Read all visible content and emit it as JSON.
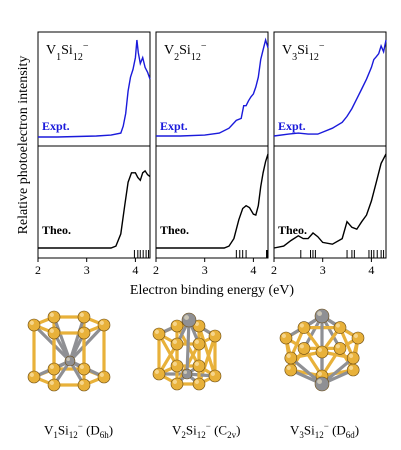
{
  "figure": {
    "ylabel": "Relative photoelectron intensity",
    "xlabel": "Electron binding energy (eV)",
    "expt_label": "Expt.",
    "theo_label": "Theo.",
    "xlim": [
      2,
      4.3
    ],
    "xticks": [
      "2",
      "3",
      "4"
    ],
    "expt_color": "#1a1adb",
    "theo_color": "#000000",
    "cluster_color": "#e8b13a",
    "dopant_color": "#8f9094"
  },
  "chart_data": [
    {
      "type": "line",
      "panel": "V1Si12-",
      "title_parts": [
        "V",
        "1",
        "Si",
        "12",
        "−"
      ],
      "xlim": [
        2,
        4.3
      ],
      "series": [
        {
          "role": "expt",
          "x": [
            2.0,
            2.4,
            2.8,
            3.2,
            3.5,
            3.7,
            3.75,
            3.8,
            3.85,
            3.9,
            3.95,
            4.0,
            4.03,
            4.06,
            4.1,
            4.15,
            4.2,
            4.25,
            4.3
          ],
          "y": [
            0.01,
            0.01,
            0.015,
            0.02,
            0.03,
            0.05,
            0.12,
            0.25,
            0.48,
            0.62,
            0.7,
            0.82,
            1.0,
            0.87,
            0.76,
            0.82,
            0.72,
            0.67,
            0.6
          ]
        },
        {
          "role": "theo",
          "x": [
            2.0,
            3.5,
            3.6,
            3.7,
            3.78,
            3.85,
            3.92,
            4.0,
            4.05,
            4.1,
            4.15,
            4.2,
            4.25,
            4.3
          ],
          "y": [
            0.0,
            0.0,
            0.02,
            0.15,
            0.45,
            0.7,
            0.8,
            0.8,
            0.75,
            0.72,
            0.8,
            0.82,
            0.78,
            0.76
          ]
        }
      ],
      "sticks": [
        3.98,
        4.05,
        4.1,
        4.16,
        4.22,
        4.27
      ]
    },
    {
      "type": "line",
      "panel": "V2Si12-",
      "title_parts": [
        "V",
        "2",
        "Si",
        "12",
        "−"
      ],
      "xlim": [
        2,
        4.3
      ],
      "series": [
        {
          "role": "expt",
          "x": [
            2.0,
            2.5,
            3.0,
            3.3,
            3.5,
            3.65,
            3.75,
            3.8,
            3.85,
            3.9,
            3.95,
            4.0,
            4.05,
            4.1,
            4.15,
            4.2,
            4.25,
            4.3
          ],
          "y": [
            0.02,
            0.02,
            0.03,
            0.05,
            0.1,
            0.18,
            0.2,
            0.33,
            0.33,
            0.38,
            0.42,
            0.45,
            0.52,
            0.62,
            0.8,
            0.9,
            1.0,
            0.92
          ]
        },
        {
          "role": "theo",
          "x": [
            2.0,
            3.4,
            3.5,
            3.6,
            3.7,
            3.78,
            3.85,
            3.92,
            4.0,
            4.05,
            4.1,
            4.15,
            4.2,
            4.25,
            4.3
          ],
          "y": [
            0.0,
            0.0,
            0.02,
            0.1,
            0.3,
            0.42,
            0.45,
            0.43,
            0.36,
            0.35,
            0.45,
            0.65,
            0.8,
            0.92,
            1.0
          ]
        }
      ],
      "sticks": [
        3.65,
        3.72,
        3.78,
        3.85,
        4.27,
        4.28,
        4.29
      ]
    },
    {
      "type": "line",
      "panel": "V3Si12-",
      "title_parts": [
        "V",
        "3",
        "Si",
        "12",
        "−"
      ],
      "xlim": [
        2,
        4.3
      ],
      "series": [
        {
          "role": "expt",
          "x": [
            2.0,
            2.3,
            2.5,
            2.7,
            2.9,
            3.0,
            3.2,
            3.4,
            3.5,
            3.6,
            3.7,
            3.8,
            3.9,
            4.0,
            4.05,
            4.1,
            4.15,
            4.2,
            4.25,
            4.3
          ],
          "y": [
            0.02,
            0.04,
            0.05,
            0.04,
            0.04,
            0.06,
            0.1,
            0.16,
            0.22,
            0.3,
            0.4,
            0.5,
            0.6,
            0.72,
            0.8,
            0.83,
            0.86,
            0.94,
            0.88,
            1.0
          ]
        },
        {
          "role": "theo",
          "x": [
            2.0,
            2.2,
            2.35,
            2.5,
            2.6,
            2.7,
            2.8,
            2.9,
            3.0,
            3.2,
            3.4,
            3.5,
            3.6,
            3.7,
            3.8,
            3.9,
            4.0,
            4.1,
            4.2,
            4.3
          ],
          "y": [
            0.0,
            0.02,
            0.08,
            0.13,
            0.1,
            0.1,
            0.16,
            0.12,
            0.06,
            0.04,
            0.1,
            0.28,
            0.22,
            0.2,
            0.28,
            0.35,
            0.5,
            0.7,
            0.9,
            1.0
          ]
        }
      ],
      "sticks": [
        2.55,
        2.75,
        2.8,
        2.85,
        3.5,
        3.6,
        3.65,
        3.95,
        4.0,
        4.05,
        4.12,
        4.2,
        4.25
      ]
    }
  ],
  "captions": [
    {
      "id": "V1Si12",
      "a": "V",
      "a_sub": "1",
      "b": "Si",
      "b_sub": "12",
      "charge": "−",
      "sym": "D",
      "sym_sub": "6h"
    },
    {
      "id": "V2Si12",
      "a": "V",
      "a_sub": "2",
      "b": "Si",
      "b_sub": "12",
      "charge": "−",
      "sym": "C",
      "sym_sub": "2v"
    },
    {
      "id": "V3Si12",
      "a": "V",
      "a_sub": "3",
      "b": "Si",
      "b_sub": "12",
      "charge": "−",
      "sym": "D",
      "sym_sub": "6d"
    }
  ]
}
